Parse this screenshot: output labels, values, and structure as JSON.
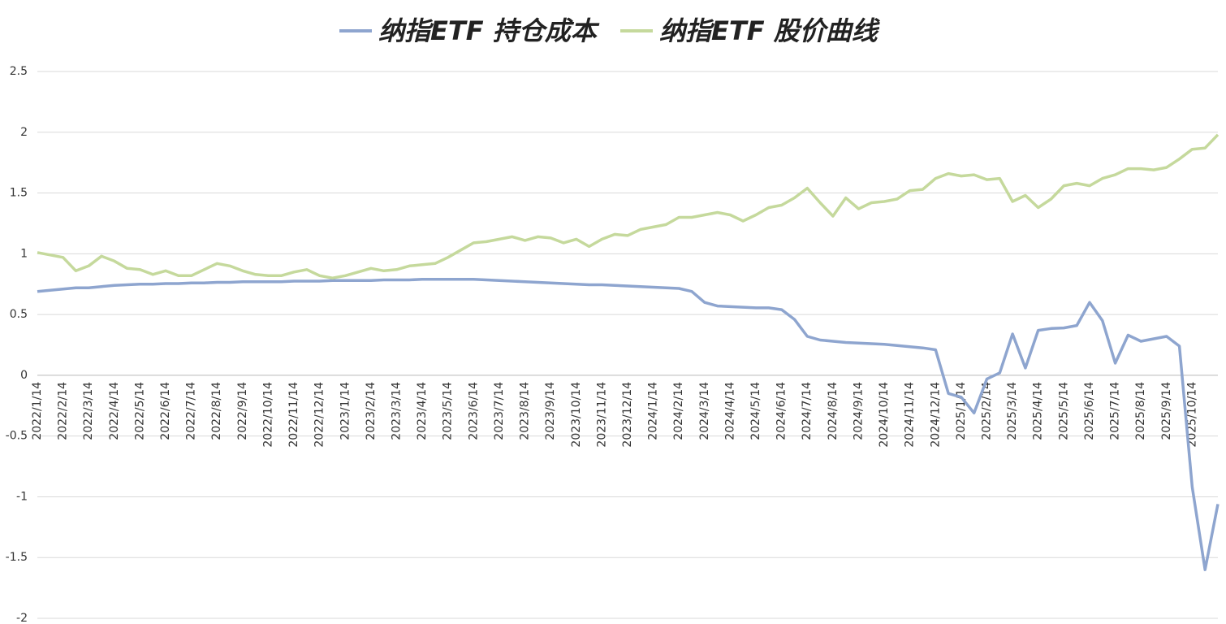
{
  "chart_data": {
    "type": "line",
    "categories": [
      "2022/1/14",
      null,
      "2022/2/14",
      null,
      "2022/3/14",
      null,
      "2022/4/14",
      null,
      "2022/5/14",
      null,
      "2022/6/14",
      null,
      "2022/7/14",
      null,
      "2022/8/14",
      null,
      "2022/9/14",
      null,
      "2022/10/14",
      null,
      "2022/11/14",
      null,
      "2022/12/14",
      null,
      "2023/1/14",
      null,
      "2023/2/14",
      null,
      "2023/3/14",
      null,
      "2023/4/14",
      null,
      "2023/5/14",
      null,
      "2023/6/14",
      null,
      "2023/7/14",
      null,
      "2023/8/14",
      null,
      "2023/9/14",
      null,
      "2023/10/14",
      null,
      "2023/11/14",
      null,
      "2023/12/14",
      null,
      "2024/1/14",
      null,
      "2024/2/14",
      null,
      "2024/3/14",
      null,
      "2024/4/14",
      null,
      "2024/5/14",
      null,
      "2024/6/14",
      null,
      "2024/7/14",
      null,
      "2024/8/14",
      null,
      "2024/9/14",
      null,
      "2024/10/14",
      null,
      "2024/11/14",
      null,
      "2024/12/14",
      null,
      "2025/1/14",
      null,
      "2025/2/14",
      null,
      "2025/3/14",
      null,
      "2025/4/14",
      null,
      "2025/5/14",
      null,
      "2025/6/14",
      null,
      "2025/7/14",
      null,
      "2025/8/14",
      null,
      "2025/9/14",
      null,
      "2025/10/14",
      null,
      null
    ],
    "series": [
      {
        "name": "纳指ETF 持仓成本",
        "color": "#8ea5cf",
        "values": [
          0.69,
          0.7,
          0.71,
          0.72,
          0.72,
          0.73,
          0.74,
          0.745,
          0.75,
          0.75,
          0.755,
          0.755,
          0.76,
          0.76,
          0.765,
          0.765,
          0.77,
          0.77,
          0.77,
          0.77,
          0.775,
          0.775,
          0.775,
          0.78,
          0.78,
          0.78,
          0.78,
          0.785,
          0.785,
          0.785,
          0.79,
          0.79,
          0.79,
          0.79,
          0.79,
          0.785,
          0.78,
          0.775,
          0.77,
          0.765,
          0.76,
          0.755,
          0.75,
          0.745,
          0.745,
          0.74,
          0.735,
          0.73,
          0.725,
          0.72,
          0.715,
          0.69,
          0.6,
          0.57,
          0.565,
          0.56,
          0.555,
          0.555,
          0.54,
          0.46,
          0.32,
          0.29,
          0.28,
          0.27,
          0.265,
          0.26,
          0.255,
          0.245,
          0.235,
          0.225,
          0.21,
          -0.15,
          -0.18,
          -0.31,
          -0.03,
          0.02,
          0.34,
          0.06,
          0.37,
          0.385,
          0.39,
          0.41,
          0.6,
          0.45,
          0.1,
          0.33,
          0.28,
          0.3,
          0.32,
          0.24,
          -0.92,
          -1.6,
          -1.06
        ]
      },
      {
        "name": "纳指ETF 股价曲线",
        "color": "#c5d99c",
        "values": [
          1.01,
          0.99,
          0.97,
          0.86,
          0.9,
          0.98,
          0.94,
          0.88,
          0.87,
          0.83,
          0.86,
          0.82,
          0.82,
          0.87,
          0.92,
          0.9,
          0.86,
          0.83,
          0.82,
          0.82,
          0.85,
          0.87,
          0.82,
          0.8,
          0.82,
          0.85,
          0.88,
          0.86,
          0.87,
          0.9,
          0.91,
          0.92,
          0.97,
          1.03,
          1.09,
          1.1,
          1.12,
          1.14,
          1.11,
          1.14,
          1.13,
          1.09,
          1.12,
          1.06,
          1.12,
          1.16,
          1.15,
          1.2,
          1.22,
          1.24,
          1.3,
          1.3,
          1.32,
          1.34,
          1.32,
          1.27,
          1.32,
          1.38,
          1.4,
          1.46,
          1.54,
          1.42,
          1.31,
          1.46,
          1.37,
          1.42,
          1.43,
          1.45,
          1.52,
          1.53,
          1.62,
          1.66,
          1.64,
          1.65,
          1.61,
          1.62,
          1.43,
          1.48,
          1.38,
          1.45,
          1.56,
          1.58,
          1.56,
          1.62,
          1.65,
          1.7,
          1.7,
          1.69,
          1.71,
          1.78,
          1.86,
          1.87,
          1.98
        ]
      }
    ],
    "ylim": [
      -2,
      2.5
    ],
    "yticks": [
      -2,
      -1.5,
      -1,
      -0.5,
      0,
      0.5,
      1,
      1.5,
      2,
      2.5
    ],
    "grid": true,
    "legend": "top"
  }
}
